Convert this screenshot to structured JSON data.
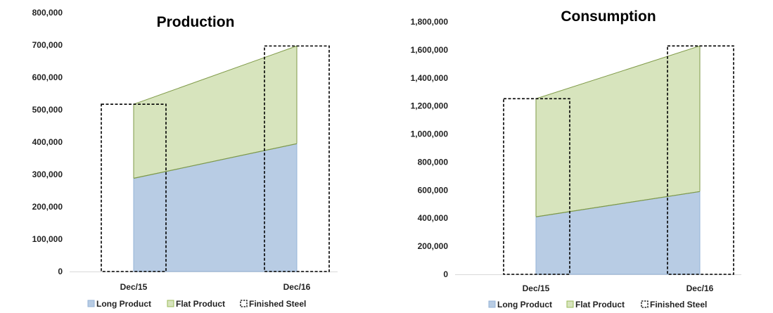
{
  "chart_data": [
    {
      "type": "area",
      "title": "Production",
      "categories": [
        "Dec/15",
        "Dec/16"
      ],
      "series": [
        {
          "name": "Long Product",
          "values": [
            288000,
            395000
          ],
          "color": "#b8cce4"
        },
        {
          "name": "Flat Product",
          "values": [
            229000,
            302000
          ],
          "color": "#d7e4bd"
        }
      ],
      "overlay": {
        "name": "Finished Steel",
        "values": [
          517000,
          697000
        ],
        "style": "dashed-box"
      },
      "ylim": [
        0,
        800000
      ],
      "yticks": [
        "0",
        "100,000",
        "200,000",
        "300,000",
        "400,000",
        "500,000",
        "600,000",
        "700,000",
        "800,000"
      ],
      "legend": "bottom"
    },
    {
      "type": "area",
      "title": "Consumption",
      "categories": [
        "Dec/15",
        "Dec/16"
      ],
      "series": [
        {
          "name": "Long Product",
          "values": [
            410000,
            590000
          ],
          "color": "#b8cce4"
        },
        {
          "name": "Flat Product",
          "values": [
            842000,
            1038000
          ],
          "color": "#d7e4bd"
        }
      ],
      "overlay": {
        "name": "Finished Steel",
        "values": [
          1252000,
          1628000
        ],
        "style": "dashed-box"
      },
      "ylim": [
        0,
        1800000
      ],
      "yticks": [
        "0",
        "200,000",
        "400,000",
        "600,000",
        "800,000",
        "1,000,000",
        "1,200,000",
        "1,400,000",
        "1,600,000",
        "1,800,000"
      ],
      "legend": "bottom"
    }
  ]
}
